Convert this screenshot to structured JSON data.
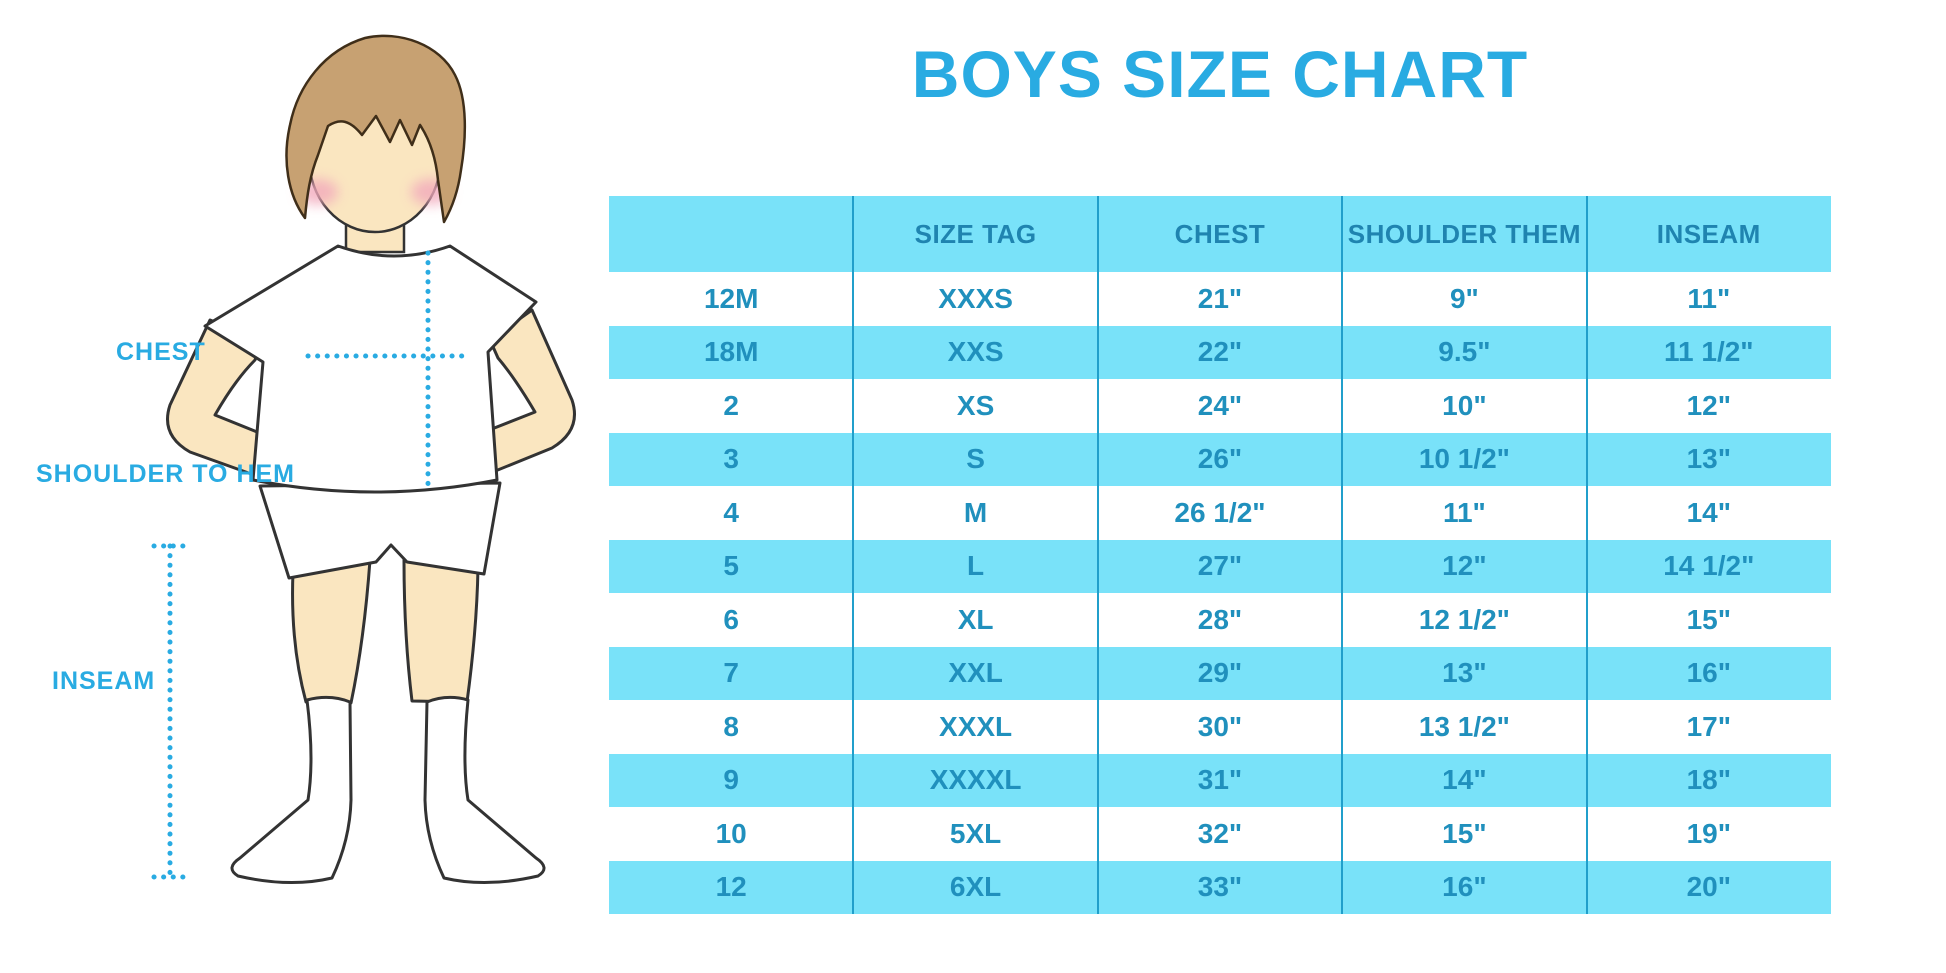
{
  "title": "BOYS SIZE CHART",
  "figure": {
    "description": "cartoon boy in white t-shirt, shorts and knee socks with measurement guides",
    "labels": {
      "chest": "CHEST",
      "shoulder_to_hem": "SHOULDER TO HEM",
      "inseam": "INSEAM"
    }
  },
  "colors": {
    "accent_blue": "#29ABE2",
    "stripe_background": "#79E2F9",
    "header_text": "#1F84B0",
    "cell_text": "#2090BD",
    "column_divider": "#219FCB",
    "hair": "#C7A172",
    "skin": "#FAE6C0",
    "cheek": "#F2A9BC"
  },
  "chart_data": {
    "type": "table",
    "title": "BOYS SIZE CHART",
    "columns": [
      "",
      "SIZE TAG",
      "CHEST",
      "SHOULDER THEM",
      "INSEAM"
    ],
    "rows": [
      [
        "12M",
        "XXXS",
        "21\"",
        "9\"",
        "11\""
      ],
      [
        "18M",
        "XXS",
        "22\"",
        "9.5\"",
        "11 1/2\""
      ],
      [
        "2",
        "XS",
        "24\"",
        "10\"",
        "12\""
      ],
      [
        "3",
        "S",
        "26\"",
        "10 1/2\"",
        "13\""
      ],
      [
        "4",
        "M",
        "26 1/2\"",
        "11\"",
        "14\""
      ],
      [
        "5",
        "L",
        "27\"",
        "12\"",
        "14 1/2\""
      ],
      [
        "6",
        "XL",
        "28\"",
        "12 1/2\"",
        "15\""
      ],
      [
        "7",
        "XXL",
        "29\"",
        "13\"",
        "16\""
      ],
      [
        "8",
        "XXXL",
        "30\"",
        "13 1/2\"",
        "17\""
      ],
      [
        "9",
        "XXXXL",
        "31\"",
        "14\"",
        "18\""
      ],
      [
        "10",
        "5XL",
        "32\"",
        "15\"",
        "19\""
      ],
      [
        "12",
        "6XL",
        "33\"",
        "16\"",
        "20\""
      ]
    ],
    "layout": {
      "striped_rows": "alternating, header and every even data row light cyan",
      "grid": "vertical column dividers only"
    }
  }
}
